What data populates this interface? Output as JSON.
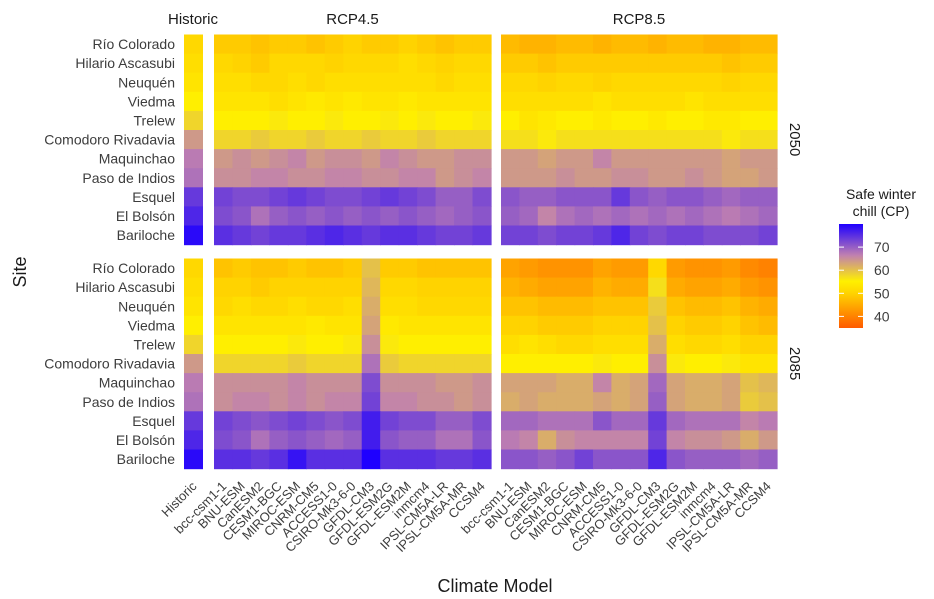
{
  "chart_data": {
    "type": "heatmap",
    "xlabel": "Climate Model",
    "ylabel": "Site",
    "legend": {
      "title_lines": [
        "Safe winter",
        "chill (CP)"
      ],
      "ticks": [
        70,
        60,
        50,
        40
      ],
      "range": [
        35,
        80
      ],
      "placement": "right"
    },
    "colors": {
      "low": "#ff5a00",
      "mid_low": "#ffd200",
      "mid": "#fff000",
      "mid_high": "#c080b0",
      "high": "#1e00ff"
    },
    "sites": [
      "Río Colorado",
      "Hilario Ascasubi",
      "Neuquén",
      "Viedma",
      "Trelew",
      "Comodoro Rivadavia",
      "Maquinchao",
      "Paso de Indios",
      "Esquel",
      "El Bolsón",
      "Bariloche"
    ],
    "historic_label": "Historic",
    "historic_values": [
      51,
      52,
      53,
      55,
      58,
      64,
      67,
      68,
      74,
      76,
      79
    ],
    "scenarios": [
      "RCP4.5",
      "RCP8.5"
    ],
    "periods": [
      "2050",
      "2085"
    ],
    "models": [
      "bcc-csm1-1",
      "BNU-ESM",
      "CanESM2",
      "CESM1-BGC",
      "MIROC-ESM",
      "CNRM-CM5",
      "ACCESS1-0",
      "CSIRO-Mk3-6-0",
      "GFDL-CM3",
      "GFDL-ESM2G",
      "GFDL-ESM2M",
      "inmcm4",
      "IPSL-CM5A-LR",
      "IPSL-CM5A-MR",
      "CCSM4"
    ],
    "panels": [
      {
        "scenario": "RCP4.5",
        "period": "2050",
        "values": [
          [
            49,
            49,
            48,
            49,
            49,
            48,
            49,
            50,
            49,
            49,
            50,
            49,
            48,
            49,
            49
          ],
          [
            51,
            50,
            49,
            51,
            51,
            51,
            50,
            51,
            51,
            51,
            52,
            51,
            50,
            51,
            51
          ],
          [
            52,
            52,
            51,
            51,
            52,
            51,
            52,
            52,
            52,
            52,
            52,
            52,
            51,
            52,
            52
          ],
          [
            53,
            53,
            53,
            52,
            53,
            54,
            53,
            54,
            53,
            53,
            54,
            53,
            53,
            53,
            53
          ],
          [
            55,
            55,
            55,
            56,
            55,
            55,
            56,
            55,
            55,
            56,
            55,
            56,
            55,
            55,
            56
          ],
          [
            58,
            58,
            59,
            58,
            58,
            59,
            58,
            58,
            59,
            58,
            58,
            59,
            58,
            58,
            58
          ],
          [
            64,
            65,
            64,
            65,
            66,
            64,
            65,
            65,
            64,
            66,
            65,
            64,
            64,
            65,
            65
          ],
          [
            65,
            65,
            66,
            66,
            65,
            65,
            66,
            66,
            65,
            65,
            66,
            66,
            64,
            65,
            66
          ],
          [
            73,
            72,
            72,
            73,
            74,
            73,
            72,
            72,
            73,
            74,
            73,
            72,
            70,
            70,
            72
          ],
          [
            72,
            71,
            68,
            70,
            71,
            70,
            71,
            70,
            71,
            70,
            71,
            70,
            69,
            70,
            71
          ],
          [
            75,
            74,
            73,
            74,
            74,
            75,
            76,
            75,
            74,
            75,
            75,
            74,
            73,
            73,
            74
          ]
        ]
      },
      {
        "scenario": "RCP8.5",
        "period": "2050",
        "values": [
          [
            47,
            46,
            46,
            47,
            47,
            46,
            47,
            47,
            46,
            47,
            47,
            46,
            46,
            47,
            47
          ],
          [
            49,
            49,
            48,
            49,
            49,
            49,
            49,
            49,
            49,
            49,
            49,
            49,
            48,
            49,
            49
          ],
          [
            51,
            51,
            50,
            51,
            51,
            50,
            51,
            51,
            51,
            51,
            51,
            51,
            50,
            51,
            51
          ],
          [
            52,
            52,
            52,
            52,
            52,
            53,
            52,
            52,
            52,
            52,
            53,
            52,
            52,
            52,
            52
          ],
          [
            55,
            53,
            54,
            55,
            55,
            54,
            55,
            55,
            54,
            55,
            55,
            54,
            54,
            55,
            55
          ],
          [
            57,
            57,
            56,
            57,
            57,
            57,
            57,
            57,
            57,
            57,
            57,
            57,
            56,
            57,
            57
          ],
          [
            64,
            64,
            63,
            64,
            64,
            66,
            64,
            64,
            64,
            64,
            64,
            64,
            63,
            64,
            64
          ],
          [
            64,
            64,
            64,
            65,
            64,
            64,
            65,
            65,
            64,
            64,
            65,
            64,
            63,
            63,
            64
          ],
          [
            71,
            70,
            70,
            71,
            71,
            71,
            74,
            71,
            70,
            71,
            71,
            70,
            69,
            70,
            70
          ],
          [
            70,
            69,
            66,
            68,
            69,
            68,
            69,
            68,
            69,
            68,
            69,
            68,
            67,
            68,
            69
          ],
          [
            73,
            73,
            72,
            73,
            73,
            74,
            76,
            73,
            72,
            73,
            73,
            72,
            72,
            72,
            73
          ]
        ]
      },
      {
        "scenario": "RCP4.5",
        "period": "2085",
        "values": [
          [
            48,
            49,
            48,
            48,
            49,
            48,
            48,
            49,
            60,
            49,
            49,
            48,
            48,
            48,
            48
          ],
          [
            50,
            50,
            49,
            50,
            50,
            50,
            50,
            50,
            61,
            51,
            51,
            50,
            50,
            50,
            50
          ],
          [
            51,
            52,
            51,
            51,
            52,
            51,
            51,
            52,
            62,
            52,
            52,
            51,
            51,
            51,
            51
          ],
          [
            53,
            53,
            53,
            53,
            53,
            54,
            53,
            53,
            63,
            54,
            53,
            53,
            53,
            53,
            53
          ],
          [
            55,
            55,
            55,
            55,
            56,
            55,
            55,
            56,
            65,
            56,
            55,
            55,
            55,
            55,
            55
          ],
          [
            58,
            58,
            58,
            58,
            59,
            58,
            58,
            58,
            68,
            59,
            58,
            58,
            58,
            58,
            58
          ],
          [
            65,
            65,
            65,
            65,
            66,
            65,
            65,
            65,
            72,
            65,
            65,
            65,
            64,
            64,
            65
          ],
          [
            65,
            66,
            66,
            65,
            66,
            65,
            66,
            66,
            73,
            66,
            66,
            65,
            65,
            64,
            65
          ],
          [
            73,
            72,
            71,
            72,
            73,
            72,
            71,
            72,
            77,
            73,
            72,
            72,
            70,
            70,
            72
          ],
          [
            72,
            71,
            68,
            70,
            71,
            70,
            69,
            70,
            77,
            71,
            70,
            70,
            68,
            68,
            71
          ],
          [
            75,
            75,
            74,
            75,
            78,
            75,
            75,
            75,
            80,
            75,
            75,
            75,
            74,
            74,
            75
          ]
        ]
      },
      {
        "scenario": "RCP8.5",
        "period": "2085",
        "values": [
          [
            44,
            43,
            42,
            42,
            42,
            44,
            43,
            43,
            51,
            43,
            42,
            42,
            43,
            41,
            40
          ],
          [
            46,
            45,
            44,
            44,
            44,
            46,
            45,
            45,
            57,
            45,
            44,
            44,
            45,
            43,
            42
          ],
          [
            48,
            48,
            47,
            47,
            47,
            48,
            48,
            48,
            59,
            48,
            47,
            47,
            48,
            46,
            45
          ],
          [
            50,
            50,
            49,
            49,
            49,
            50,
            50,
            50,
            60,
            50,
            49,
            49,
            50,
            48,
            47
          ],
          [
            52,
            53,
            52,
            51,
            51,
            52,
            52,
            52,
            62,
            52,
            51,
            51,
            52,
            50,
            50
          ],
          [
            55,
            55,
            55,
            55,
            55,
            56,
            55,
            55,
            65,
            56,
            55,
            55,
            56,
            53,
            53
          ],
          [
            63,
            63,
            63,
            62,
            62,
            66,
            62,
            63,
            69,
            63,
            62,
            62,
            63,
            60,
            61
          ],
          [
            62,
            63,
            62,
            62,
            62,
            63,
            62,
            63,
            70,
            63,
            62,
            62,
            63,
            59,
            60
          ],
          [
            69,
            69,
            68,
            68,
            68,
            71,
            69,
            69,
            74,
            69,
            68,
            68,
            68,
            66,
            67
          ],
          [
            67,
            66,
            62,
            65,
            66,
            66,
            66,
            66,
            73,
            66,
            65,
            65,
            64,
            62,
            64
          ],
          [
            71,
            71,
            70,
            71,
            73,
            71,
            71,
            71,
            76,
            71,
            70,
            70,
            70,
            69,
            70
          ]
        ]
      }
    ]
  }
}
